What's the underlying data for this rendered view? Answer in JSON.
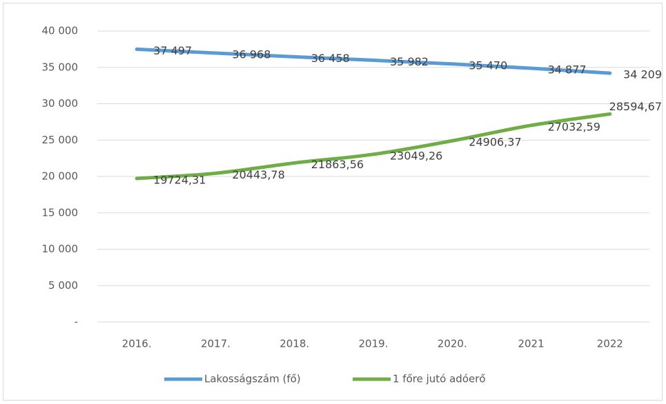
{
  "chart_data": {
    "type": "line",
    "categories": [
      "2016.",
      "2017.",
      "2018.",
      "2019.",
      "2020.",
      "2021",
      "2022"
    ],
    "series": [
      {
        "name": "Lakosságszám (fő)",
        "color": "#5b9bd5",
        "values": [
          37497,
          36968,
          36458,
          35982,
          35470,
          34877,
          34209
        ],
        "value_labels": [
          "37 497",
          "36 968",
          "36 458",
          "35 982",
          "35 470",
          "34 877",
          "34 209"
        ]
      },
      {
        "name": "1 főre jutó adóerő",
        "color": "#70ad47",
        "values": [
          19724.31,
          20443.78,
          21863.56,
          23049.26,
          24906.37,
          27032.59,
          28594.67
        ],
        "value_labels": [
          "19724,31",
          "20443,78",
          "21863,56",
          "23049,26",
          "24906,37",
          "27032,59",
          "28594,67"
        ]
      }
    ],
    "ylim": [
      0,
      40000
    ],
    "yticks": [
      {
        "value": 0,
        "label": "-"
      },
      {
        "value": 5000,
        "label": "5 000"
      },
      {
        "value": 10000,
        "label": "10 000"
      },
      {
        "value": 15000,
        "label": "15 000"
      },
      {
        "value": 20000,
        "label": "20 000"
      },
      {
        "value": 25000,
        "label": "25 000"
      },
      {
        "value": 30000,
        "label": "30 000"
      },
      {
        "value": 35000,
        "label": "35 000"
      },
      {
        "value": 40000,
        "label": "40 000"
      }
    ],
    "grid": true,
    "legend": "bottom"
  }
}
